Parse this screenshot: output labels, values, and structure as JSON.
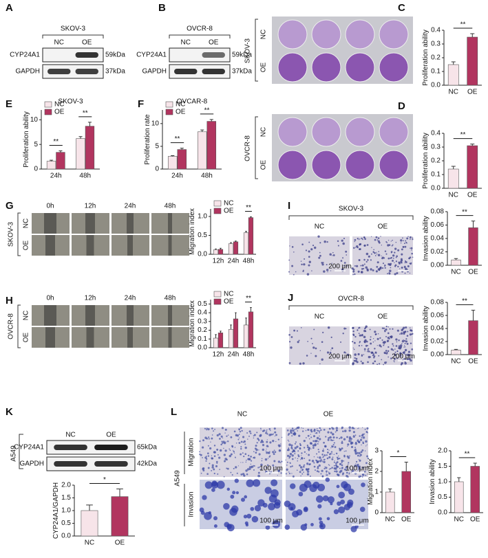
{
  "panels": {
    "A": {
      "letter": "A",
      "cell": "SKOV-3",
      "lanes": [
        "NC",
        "OE"
      ],
      "bands": [
        "CYP24A1",
        "GAPDH"
      ],
      "sizes": [
        "59kDa",
        "37kDa"
      ]
    },
    "B": {
      "letter": "B",
      "cell": "OVCR-8",
      "lanes": [
        "NC",
        "OE"
      ],
      "bands": [
        "CYP24A1",
        "GAPDH"
      ],
      "sizes": [
        "59kDa",
        "37kDa"
      ]
    },
    "C": {
      "letter": "C",
      "cell": "SKOV-3",
      "rows": [
        "NC",
        "OE"
      ]
    },
    "D": {
      "letter": "D",
      "cell": "OVCR-8",
      "rows": [
        "NC",
        "OE"
      ]
    },
    "E": {
      "letter": "E"
    },
    "F": {
      "letter": "F"
    },
    "G": {
      "letter": "G",
      "cell": "SKOV-3",
      "rows": [
        "NC",
        "OE"
      ],
      "times": [
        "0h",
        "12h",
        "24h",
        "48h"
      ]
    },
    "H": {
      "letter": "H",
      "cell": "OVCR-8",
      "rows": [
        "NC",
        "OE"
      ],
      "times": [
        "0h",
        "12h",
        "24h",
        "48h"
      ]
    },
    "I": {
      "letter": "I",
      "cell": "SKOV-3",
      "cols": [
        "NC",
        "OE"
      ],
      "scale": "200 μm"
    },
    "J": {
      "letter": "J",
      "cell": "OVCR-8",
      "cols": [
        "NC",
        "OE"
      ],
      "scale": "200 μm"
    },
    "K": {
      "letter": "K",
      "cell": "A549",
      "lanes": [
        "NC",
        "OE"
      ],
      "bands": [
        "CYP24A1",
        "GAPDH"
      ],
      "sizes": [
        "65kDa",
        "42kDa"
      ]
    },
    "L": {
      "letter": "L",
      "cell": "A549",
      "cols": [
        "NC",
        "OE"
      ],
      "rows": [
        "Migration",
        "Invasion"
      ],
      "scale": "100 μm"
    }
  },
  "chart_data": [
    {
      "type": "bar",
      "ylabel": "Proliferation ability",
      "categories": [
        "NC",
        "OE"
      ],
      "values": [
        0.15,
        0.35
      ],
      "errors": [
        0.02,
        0.025
      ],
      "colors": [
        "#f7e4e9",
        "#b1355f"
      ],
      "ylim": [
        0,
        0.4
      ],
      "yticks": [
        {
          "value": 0,
          "label": "0.0"
        },
        0.1,
        0.2,
        0.3,
        0.4
      ],
      "annotations": [
        "**"
      ]
    },
    {
      "type": "bar",
      "ylabel": "Proliferation ability",
      "categories": [
        "NC",
        "OE"
      ],
      "values": [
        0.14,
        0.31
      ],
      "errors": [
        0.02,
        0.012
      ],
      "colors": [
        "#f7e4e9",
        "#b1355f"
      ],
      "ylim": [
        0,
        0.4
      ],
      "yticks": [
        {
          "value": 0,
          "label": "0.0"
        },
        0.1,
        0.2,
        0.3,
        0.4
      ],
      "annotations": [
        "**"
      ]
    },
    {
      "type": "grouped_bar",
      "title": "SKOV-3",
      "ylabel": "Proliferation ability",
      "categories": [
        "24h",
        "48h"
      ],
      "series": [
        {
          "name": "NC",
          "color": "#f7e4e9",
          "values": [
            1.6,
            6.2
          ],
          "errors": [
            0.2,
            0.4
          ]
        },
        {
          "name": "OE",
          "color": "#b1355f",
          "values": [
            3.4,
            8.7
          ],
          "errors": [
            0.3,
            0.8
          ]
        }
      ],
      "legend": "top-left",
      "ylim": [
        0,
        12
      ],
      "yticks": [
        0,
        5,
        10
      ],
      "annotations": [
        "**",
        "**"
      ]
    },
    {
      "type": "grouped_bar",
      "title": "OVCAR-8",
      "ylabel": "Proliferation rate",
      "categories": [
        "24h",
        "48h"
      ],
      "series": [
        {
          "name": "NC",
          "color": "#f7e4e9",
          "values": [
            2.8,
            8.2
          ],
          "errors": [
            0.15,
            0.4
          ]
        },
        {
          "name": "OE",
          "color": "#b1355f",
          "values": [
            4.3,
            10.5
          ],
          "errors": [
            0.3,
            0.4
          ]
        }
      ],
      "legend": "top-left",
      "ylim": [
        0,
        13
      ],
      "yticks": [
        0,
        5,
        10
      ],
      "annotations": [
        "**",
        "**"
      ]
    },
    {
      "type": "grouped_bar",
      "ylabel": "Migration index",
      "categories": [
        "12h",
        "24h",
        "48h"
      ],
      "series": [
        {
          "name": "NC",
          "color": "#f7e4e9",
          "values": [
            0.12,
            0.28,
            0.57
          ],
          "errors": [
            0.02,
            0.03,
            0.04
          ]
        },
        {
          "name": "OE",
          "color": "#b1355f",
          "values": [
            0.13,
            0.33,
            0.97
          ],
          "errors": [
            0.03,
            0.02,
            0.02
          ]
        }
      ],
      "legend": "top-left",
      "ylim": [
        0,
        1.2
      ],
      "yticks": [
        {
          "value": 0,
          "label": "0.0"
        },
        0.5,
        {
          "value": 1,
          "label": "1.0"
        }
      ],
      "annotations": [
        "**"
      ]
    },
    {
      "type": "grouped_bar",
      "ylabel": "Migration index",
      "categories": [
        "12h",
        "24h",
        "48h"
      ],
      "series": [
        {
          "name": "NC",
          "color": "#f7e4e9",
          "values": [
            0.11,
            0.21,
            0.26
          ],
          "errors": [
            0.04,
            0.05,
            0.08
          ]
        },
        {
          "name": "OE",
          "color": "#b1355f",
          "values": [
            0.17,
            0.33,
            0.41
          ],
          "errors": [
            0.02,
            0.07,
            0.05
          ]
        }
      ],
      "legend": "top-left",
      "ylim": [
        0,
        0.55
      ],
      "yticks": [
        {
          "value": 0,
          "label": "0.0"
        },
        0.1,
        0.2,
        0.3,
        0.4,
        0.5
      ],
      "annotations": [
        "**"
      ]
    },
    {
      "type": "bar",
      "ylabel": "Invasion ability",
      "categories": [
        "NC",
        "OE"
      ],
      "values": [
        0.008,
        0.056
      ],
      "errors": [
        0.002,
        0.01
      ],
      "colors": [
        "#f7e4e9",
        "#b1355f"
      ],
      "ylim": [
        0,
        0.08
      ],
      "yticks": [
        {
          "value": 0,
          "label": "0.00"
        },
        0.02,
        0.04,
        0.06,
        0.08
      ],
      "annotations": [
        "**"
      ]
    },
    {
      "type": "bar",
      "ylabel": "Invasion ability",
      "categories": [
        "NC",
        "OE"
      ],
      "values": [
        0.007,
        0.052
      ],
      "errors": [
        0.001,
        0.016
      ],
      "colors": [
        "#f7e4e9",
        "#b1355f"
      ],
      "ylim": [
        0,
        0.08
      ],
      "yticks": [
        {
          "value": 0,
          "label": "0.00"
        },
        0.02,
        0.04,
        0.06,
        0.08
      ],
      "annotations": [
        "**"
      ]
    },
    {
      "type": "bar",
      "ylabel": "CYP24A1/GAPDH",
      "categories": [
        "NC",
        "OE"
      ],
      "values": [
        1.0,
        1.55
      ],
      "errors": [
        0.22,
        0.3
      ],
      "colors": [
        "#f7e4e9",
        "#b1355f"
      ],
      "ylim": [
        0,
        2.0
      ],
      "yticks": [
        {
          "value": 0,
          "label": "0.0"
        },
        0.5,
        {
          "value": 1,
          "label": "1.0"
        },
        1.5,
        {
          "value": 2,
          "label": "2.0"
        }
      ],
      "annotations": [
        "*"
      ]
    },
    {
      "type": "bar",
      "ylabel": "Migration index",
      "categories": [
        "NC",
        "OE"
      ],
      "values": [
        1.0,
        2.0
      ],
      "errors": [
        0.15,
        0.45
      ],
      "colors": [
        "#f7e4e9",
        "#b1355f"
      ],
      "ylim": [
        0,
        3
      ],
      "yticks": [
        0,
        1,
        2,
        3
      ],
      "annotations": [
        "*"
      ]
    },
    {
      "type": "bar",
      "ylabel": "Invasion ability",
      "categories": [
        "NC",
        "OE"
      ],
      "values": [
        1.0,
        1.5
      ],
      "errors": [
        0.13,
        0.1
      ],
      "colors": [
        "#f7e4e9",
        "#b1355f"
      ],
      "ylim": [
        0,
        2.0
      ],
      "yticks": [
        {
          "value": 0,
          "label": "0.0"
        },
        0.5,
        {
          "value": 1,
          "label": "1.0"
        },
        1.5,
        {
          "value": 2,
          "label": "2.0"
        }
      ],
      "annotations": [
        "**"
      ]
    }
  ]
}
